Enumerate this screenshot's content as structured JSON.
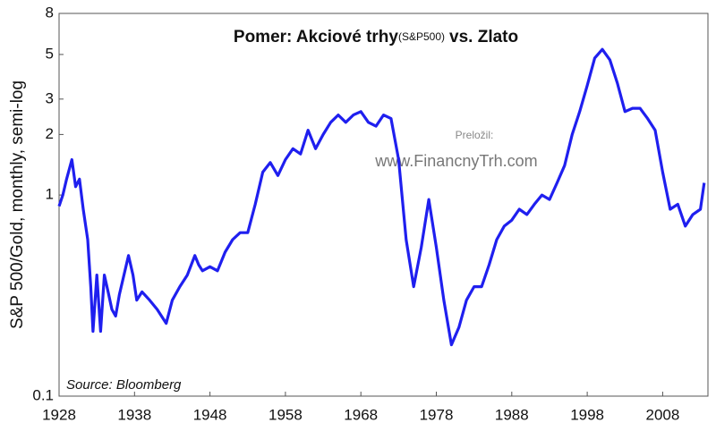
{
  "chart_data": {
    "type": "line",
    "title": "Pomer: Akciové trhy",
    "title_subscript": "(S&P500)",
    "title_suffix": "vs. Zlato",
    "y_label": "S&P 500/Gold, monthly, semi-log",
    "annotations": [
      "Preložil:",
      "www.FinancnyTrh.com",
      "Source: Bloomberg"
    ],
    "log_y": true,
    "xlim": [
      1928,
      2014
    ],
    "xticks": [
      1928,
      1938,
      1948,
      1958,
      1968,
      1978,
      1988,
      1998,
      2008
    ],
    "ylim": [
      0.1,
      8
    ],
    "yticks": [
      0.1,
      1,
      2,
      3,
      5,
      8
    ],
    "series": [
      {
        "name": "S&P 500/Gold",
        "color": "#1f1fef",
        "x": [
          1928,
          1928.5,
          1929,
          1929.7,
          1930.2,
          1930.7,
          1931.2,
          1931.8,
          1932.2,
          1932.5,
          1933,
          1933.5,
          1934,
          1934.5,
          1935,
          1935.5,
          1936,
          1937.2,
          1937.8,
          1938.3,
          1939,
          1940,
          1941,
          1942.2,
          1943,
          1944,
          1945,
          1946,
          1946.5,
          1947,
          1948,
          1949,
          1950,
          1951,
          1952,
          1953,
          1954,
          1955,
          1956,
          1957,
          1958,
          1959,
          1960,
          1961,
          1962,
          1963,
          1964,
          1965,
          1966,
          1967,
          1968,
          1969,
          1970,
          1971,
          1972,
          1973,
          1974,
          1975,
          1976,
          1977,
          1978,
          1979,
          1980,
          1981,
          1982,
          1983,
          1984,
          1985,
          1986,
          1987,
          1988,
          1989,
          1990,
          1991,
          1992,
          1993,
          1994,
          1995,
          1996,
          1997,
          1998,
          1999,
          2000,
          2001,
          2002,
          2003,
          2004,
          2005,
          2006,
          2007,
          2008,
          2009,
          2010,
          2011,
          2012,
          2013,
          2013.5
        ],
        "values": [
          0.88,
          1.0,
          1.2,
          1.5,
          1.1,
          1.2,
          0.85,
          0.6,
          0.35,
          0.21,
          0.4,
          0.21,
          0.4,
          0.33,
          0.27,
          0.25,
          0.32,
          0.5,
          0.4,
          0.3,
          0.33,
          0.3,
          0.27,
          0.23,
          0.3,
          0.35,
          0.4,
          0.5,
          0.45,
          0.42,
          0.44,
          0.42,
          0.52,
          0.6,
          0.65,
          0.65,
          0.9,
          1.3,
          1.45,
          1.25,
          1.5,
          1.7,
          1.6,
          2.1,
          1.7,
          2.0,
          2.3,
          2.5,
          2.3,
          2.5,
          2.6,
          2.3,
          2.2,
          2.5,
          2.4,
          1.5,
          0.6,
          0.35,
          0.55,
          0.95,
          0.55,
          0.3,
          0.18,
          0.22,
          0.3,
          0.35,
          0.35,
          0.45,
          0.6,
          0.7,
          0.75,
          0.85,
          0.8,
          0.9,
          1.0,
          0.95,
          1.15,
          1.4,
          2.0,
          2.6,
          3.5,
          4.8,
          5.3,
          4.7,
          3.6,
          2.6,
          2.7,
          2.7,
          2.4,
          2.1,
          1.3,
          0.85,
          0.9,
          0.7,
          0.8,
          0.85,
          1.15
        ]
      }
    ]
  }
}
